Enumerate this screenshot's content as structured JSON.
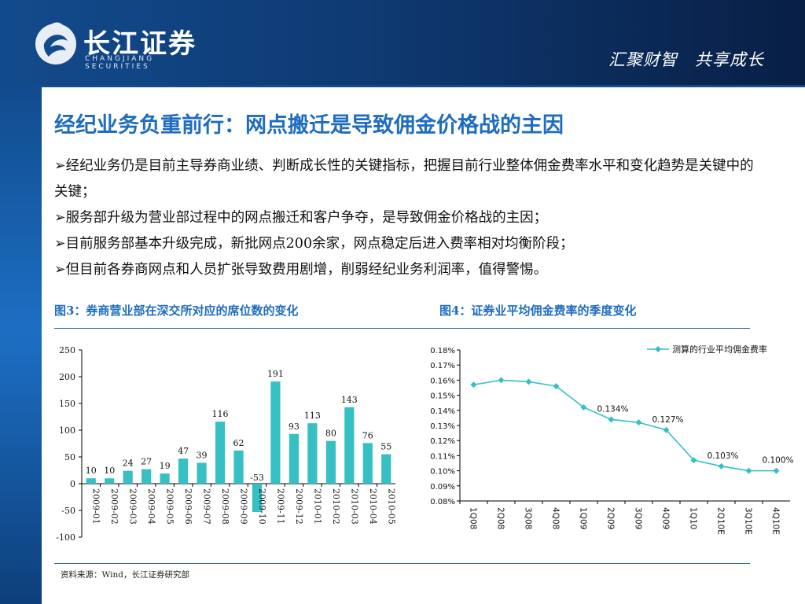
{
  "header": {
    "logo_cn": "长江证券",
    "logo_en": "CHANGJIANG SECURITIES",
    "slogan": "汇聚财智　共享成长",
    "colors": {
      "header_bg": "#0f3a73",
      "accent": "#1f6dbf"
    }
  },
  "slide": {
    "title": "经纪业务负重前行：网点搬迁是导致佣金价格战的主因",
    "bullets": [
      "经纪业务仍是目前主导券商业绩、判断成长性的关键指标，把握目前行业整体佣金费率水平和变化趋势是关键中的关键；",
      "服务部升级为营业部过程中的网点搬迁和客户争夺，是导致佣金价格战的主因；",
      "目前服务部基本升级完成，新批网点200余家，网点稳定后进入费率相对均衡阶段；",
      "但目前各券商网点和人员扩张导致费用剧增，削弱经纪业务利润率，值得警惕。"
    ],
    "bullet_marker": "➢",
    "fig3_title": "图3：券商营业部在深交所对应的席位数的变化",
    "fig4_title": "图4：证券业平均佣金费率的季度变化",
    "source": "资料来源：Wind，长江证券研究部"
  },
  "chart_data": [
    {
      "type": "bar",
      "categories": [
        "2009-01",
        "2009-02",
        "2009-03",
        "2009-04",
        "2009-05",
        "2009-06",
        "2009-07",
        "2009-08",
        "2009-09",
        "2009-10",
        "2009-11",
        "2009-12",
        "2010-01",
        "2010-02",
        "2010-03",
        "2010-04",
        "2010-05"
      ],
      "values": [
        10,
        10,
        24,
        27,
        19,
        47,
        39,
        116,
        62,
        -53,
        191,
        93,
        113,
        80,
        143,
        76,
        55
      ],
      "data_labels": [
        "10",
        "10",
        "24",
        "27",
        "19",
        "47",
        "39",
        "116",
        "62",
        "-53",
        "191",
        "93",
        "113",
        "80",
        "143",
        "76",
        "55"
      ],
      "ylim": [
        -100,
        250
      ],
      "yticks": [
        "250",
        "200",
        "150",
        "100",
        "50",
        "0",
        "-50",
        "-100"
      ],
      "color": "#37c0c4",
      "grid": false
    },
    {
      "type": "line",
      "categories": [
        "1Q08",
        "2Q08",
        "3Q08",
        "4Q08",
        "1Q09",
        "2Q09",
        "3Q09",
        "4Q09",
        "1Q10",
        "2Q10E",
        "3Q10E",
        "4Q10E"
      ],
      "series": [
        {
          "name": "测算的行业平均佣金费率",
          "values": [
            0.157,
            0.16,
            0.159,
            0.156,
            0.142,
            0.134,
            0.132,
            0.127,
            0.107,
            0.103,
            0.1,
            0.1
          ]
        }
      ],
      "data_labels": [
        {
          "index": 5,
          "text": "0.134%"
        },
        {
          "index": 7,
          "text": "0.127%"
        },
        {
          "index": 9,
          "text": "0.103%"
        },
        {
          "index": 11,
          "text": "0.100%"
        }
      ],
      "ylim": [
        0.08,
        0.18
      ],
      "yticks": [
        "0.18%",
        "0.17%",
        "0.16%",
        "0.15%",
        "0.14%",
        "0.13%",
        "0.12%",
        "0.11%",
        "0.10%",
        "0.09%",
        "0.08%"
      ],
      "legend_position": "top-right",
      "color": "#37c0c4",
      "grid": false
    }
  ]
}
